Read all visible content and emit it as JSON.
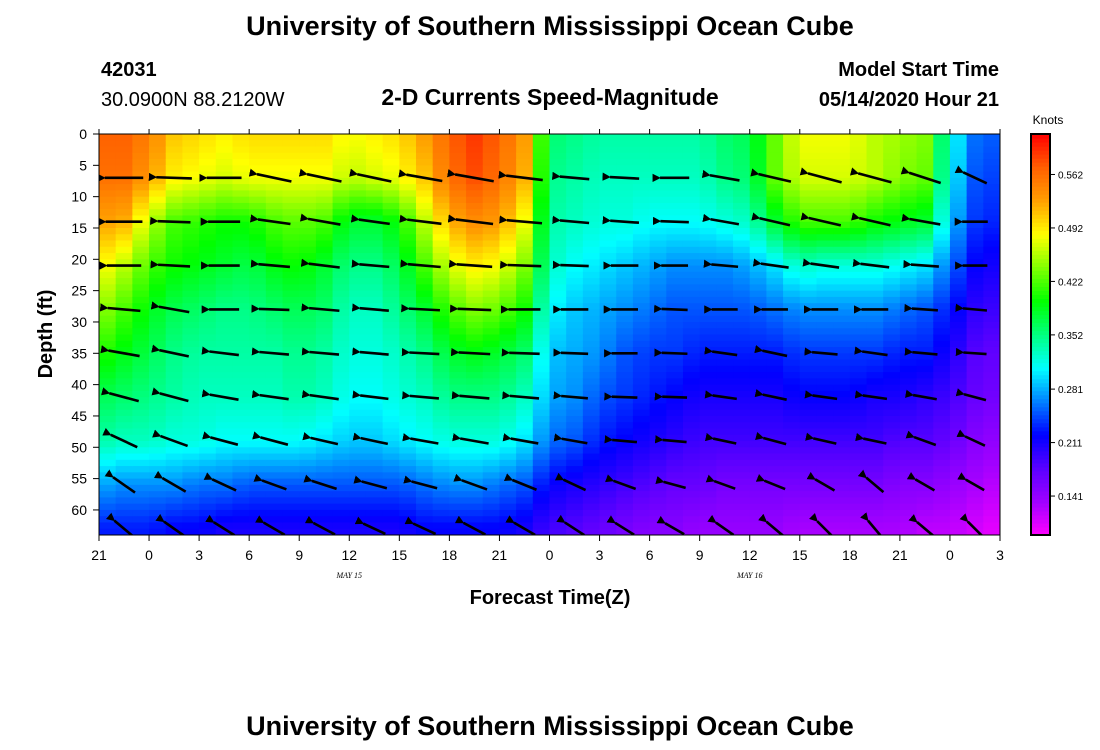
{
  "header": {
    "title_top": "University of Southern Mississippi Ocean Cube",
    "title_bottom": "University of Southern Mississippi Ocean Cube",
    "station_id": "42031",
    "location": "30.0900N 88.2120W",
    "plot_title": "2-D Currents Speed-Magnitude",
    "model_start_label": "Model Start Time",
    "model_start_value": "05/14/2020 Hour 21"
  },
  "chart_data": {
    "type": "heatmap",
    "title": "2-D Currents Speed-Magnitude",
    "xlabel": "Forecast Time(Z)",
    "ylabel": "Depth (ft)",
    "x_tick_labels": [
      "21",
      "0",
      "3",
      "6",
      "9",
      "12",
      "15",
      "18",
      "21",
      "0",
      "3",
      "6",
      "9",
      "12",
      "15",
      "18",
      "21",
      "0",
      "3"
    ],
    "x_date_labels": [
      {
        "text": "MAY 15",
        "tick_index": 5
      },
      {
        "text": "MAY 16",
        "tick_index": 13
      }
    ],
    "xlim_hours": [
      0,
      54
    ],
    "y_ticks": [
      0,
      5,
      10,
      15,
      20,
      25,
      30,
      35,
      40,
      45,
      50,
      55,
      60
    ],
    "ylim": [
      0,
      64
    ],
    "y_inverted": true,
    "colorbar": {
      "units": "Knots",
      "ticks": [
        0.141,
        0.211,
        0.281,
        0.352,
        0.422,
        0.492,
        0.562
      ],
      "range": [
        0.09,
        0.615
      ],
      "colors": [
        "#ff00ff",
        "#a000ff",
        "#5a00ff",
        "#0000ff",
        "#0080ff",
        "#00ffff",
        "#00ff80",
        "#00ff00",
        "#80ff00",
        "#ffff00",
        "#ffa000",
        "#ff6000",
        "#ff0000"
      ]
    },
    "speed_grid": {
      "depths_ft": [
        0,
        7,
        14,
        21,
        28,
        35,
        42,
        49,
        56,
        63
      ],
      "hours": [
        0,
        1.5,
        3,
        4.5,
        6,
        7.5,
        9,
        10.5,
        12,
        13.5,
        15,
        16.5,
        18,
        19.5,
        21,
        22.5,
        24,
        25.5,
        27,
        28.5,
        30,
        31.5,
        33,
        34.5,
        36,
        37.5,
        39,
        40.5,
        42,
        43.5,
        45,
        46.5,
        48,
        49.5,
        51,
        52.5,
        54
      ],
      "values": [
        [
          0.57,
          0.57,
          0.55,
          0.51,
          0.5,
          0.49,
          0.5,
          0.5,
          0.5,
          0.5,
          0.48,
          0.49,
          0.5,
          0.53,
          0.57,
          0.59,
          0.57,
          0.53,
          0.36,
          0.35,
          0.34,
          0.34,
          0.34,
          0.34,
          0.34,
          0.36,
          0.37,
          0.43,
          0.48,
          0.48,
          0.48,
          0.46,
          0.45,
          0.44,
          0.32,
          0.26,
          0.25
        ],
        [
          0.56,
          0.56,
          0.53,
          0.49,
          0.48,
          0.47,
          0.48,
          0.48,
          0.48,
          0.48,
          0.46,
          0.47,
          0.48,
          0.51,
          0.56,
          0.58,
          0.56,
          0.52,
          0.35,
          0.34,
          0.33,
          0.33,
          0.33,
          0.33,
          0.33,
          0.35,
          0.36,
          0.43,
          0.47,
          0.47,
          0.47,
          0.46,
          0.44,
          0.43,
          0.31,
          0.25,
          0.24
        ],
        [
          0.53,
          0.52,
          0.46,
          0.42,
          0.41,
          0.4,
          0.4,
          0.42,
          0.43,
          0.42,
          0.38,
          0.38,
          0.4,
          0.46,
          0.52,
          0.54,
          0.53,
          0.48,
          0.34,
          0.33,
          0.32,
          0.32,
          0.31,
          0.31,
          0.31,
          0.32,
          0.33,
          0.38,
          0.42,
          0.42,
          0.42,
          0.4,
          0.39,
          0.38,
          0.29,
          0.24,
          0.23
        ],
        [
          0.49,
          0.46,
          0.42,
          0.4,
          0.39,
          0.38,
          0.37,
          0.39,
          0.4,
          0.38,
          0.35,
          0.35,
          0.37,
          0.42,
          0.47,
          0.49,
          0.48,
          0.44,
          0.33,
          0.31,
          0.3,
          0.29,
          0.28,
          0.27,
          0.27,
          0.27,
          0.28,
          0.3,
          0.33,
          0.32,
          0.32,
          0.32,
          0.31,
          0.3,
          0.26,
          0.22,
          0.21
        ],
        [
          0.45,
          0.42,
          0.39,
          0.37,
          0.36,
          0.35,
          0.35,
          0.36,
          0.37,
          0.36,
          0.33,
          0.33,
          0.35,
          0.38,
          0.42,
          0.44,
          0.43,
          0.4,
          0.31,
          0.29,
          0.28,
          0.27,
          0.26,
          0.25,
          0.25,
          0.25,
          0.25,
          0.26,
          0.27,
          0.27,
          0.27,
          0.27,
          0.26,
          0.25,
          0.23,
          0.2,
          0.19
        ],
        [
          0.41,
          0.39,
          0.37,
          0.35,
          0.34,
          0.34,
          0.34,
          0.34,
          0.35,
          0.34,
          0.32,
          0.32,
          0.33,
          0.35,
          0.38,
          0.39,
          0.38,
          0.36,
          0.29,
          0.28,
          0.27,
          0.25,
          0.24,
          0.24,
          0.23,
          0.23,
          0.23,
          0.23,
          0.24,
          0.24,
          0.24,
          0.24,
          0.23,
          0.23,
          0.21,
          0.18,
          0.17
        ],
        [
          0.37,
          0.36,
          0.35,
          0.34,
          0.33,
          0.33,
          0.33,
          0.33,
          0.34,
          0.33,
          0.31,
          0.31,
          0.32,
          0.33,
          0.35,
          0.35,
          0.35,
          0.33,
          0.28,
          0.27,
          0.25,
          0.24,
          0.23,
          0.22,
          0.21,
          0.21,
          0.21,
          0.21,
          0.22,
          0.22,
          0.22,
          0.21,
          0.21,
          0.2,
          0.19,
          0.17,
          0.16
        ],
        [
          0.34,
          0.33,
          0.33,
          0.32,
          0.32,
          0.31,
          0.31,
          0.31,
          0.31,
          0.3,
          0.29,
          0.29,
          0.3,
          0.31,
          0.32,
          0.32,
          0.32,
          0.3,
          0.26,
          0.25,
          0.23,
          0.22,
          0.21,
          0.2,
          0.19,
          0.19,
          0.19,
          0.19,
          0.19,
          0.19,
          0.19,
          0.19,
          0.18,
          0.18,
          0.17,
          0.15,
          0.14
        ],
        [
          0.28,
          0.27,
          0.27,
          0.27,
          0.26,
          0.26,
          0.25,
          0.25,
          0.25,
          0.25,
          0.25,
          0.25,
          0.25,
          0.26,
          0.27,
          0.27,
          0.26,
          0.25,
          0.22,
          0.21,
          0.2,
          0.19,
          0.18,
          0.17,
          0.17,
          0.16,
          0.16,
          0.16,
          0.16,
          0.16,
          0.16,
          0.16,
          0.15,
          0.15,
          0.14,
          0.13,
          0.12
        ],
        [
          0.23,
          0.23,
          0.23,
          0.22,
          0.22,
          0.21,
          0.21,
          0.21,
          0.21,
          0.21,
          0.21,
          0.21,
          0.21,
          0.22,
          0.22,
          0.22,
          0.22,
          0.21,
          0.19,
          0.18,
          0.17,
          0.16,
          0.15,
          0.15,
          0.14,
          0.14,
          0.14,
          0.14,
          0.13,
          0.13,
          0.13,
          0.13,
          0.13,
          0.12,
          0.12,
          0.11,
          0.1
        ]
      ]
    },
    "vectors": {
      "hours": [
        1.5,
        4.5,
        7.5,
        10.5,
        13.5,
        16.5,
        19.5,
        22.5,
        25.5,
        28.5,
        31.5,
        34.5,
        37.5,
        40.5,
        43.5,
        46.5,
        49.5,
        52.5
      ],
      "depths_ft": [
        7,
        14,
        21,
        28,
        35,
        42,
        49,
        56,
        63
      ],
      "direction_deg": [
        [
          180,
          178,
          180,
          168,
          168,
          168,
          170,
          170,
          173,
          175,
          177,
          180,
          170,
          167,
          165,
          165,
          162,
          155
        ],
        [
          180,
          178,
          180,
          172,
          170,
          172,
          173,
          173,
          175,
          175,
          176,
          178,
          170,
          167,
          167,
          167,
          170,
          180
        ],
        [
          180,
          177,
          180,
          175,
          173,
          175,
          175,
          176,
          178,
          178,
          180,
          180,
          175,
          172,
          172,
          173,
          176,
          180
        ],
        [
          175,
          170,
          180,
          178,
          175,
          175,
          177,
          178,
          180,
          180,
          180,
          178,
          180,
          180,
          180,
          180,
          176,
          175
        ],
        [
          170,
          168,
          173,
          175,
          175,
          175,
          177,
          177,
          178,
          178,
          180,
          178,
          172,
          168,
          175,
          172,
          175,
          176
        ],
        [
          165,
          165,
          170,
          172,
          172,
          173,
          175,
          175,
          175,
          175,
          178,
          178,
          172,
          168,
          172,
          172,
          170,
          165
        ],
        [
          155,
          160,
          165,
          165,
          167,
          168,
          170,
          170,
          170,
          170,
          175,
          175,
          168,
          165,
          167,
          168,
          160,
          155
        ],
        [
          145,
          150,
          155,
          160,
          162,
          165,
          165,
          160,
          158,
          155,
          160,
          165,
          160,
          158,
          150,
          140,
          150,
          150
        ],
        [
          140,
          145,
          148,
          150,
          152,
          155,
          155,
          152,
          150,
          147,
          148,
          150,
          145,
          140,
          135,
          130,
          140,
          135
        ]
      ]
    }
  }
}
